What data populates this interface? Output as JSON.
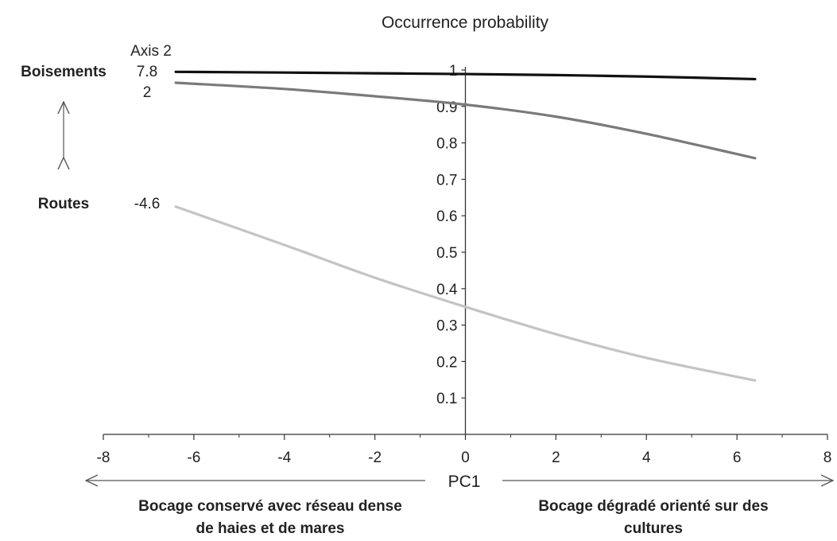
{
  "chart_data": {
    "type": "line",
    "title": "Occurrence probability",
    "xlabel": "PC1",
    "xlim": [
      -8,
      8
    ],
    "ylim": [
      0,
      1
    ],
    "x_ticks": [
      "-8",
      "-6",
      "-4",
      "-2",
      "0",
      "2",
      "4",
      "6",
      "8"
    ],
    "y_ticks": [
      "0.1",
      "0.2",
      "0.3",
      "0.4",
      "0.5",
      "0.6",
      "0.7",
      "0.8",
      "0.9",
      "1"
    ],
    "grid": false,
    "legend": {
      "title": "Axis 2",
      "top_label": "Boisements",
      "bottom_label": "Routes"
    },
    "x_descriptors": {
      "left": [
        "Bocage conservé avec réseau dense",
        "de haies et de mares"
      ],
      "right": [
        "Bocage dégradé orienté sur des",
        "cultures"
      ]
    },
    "series": [
      {
        "name": "7.8",
        "color": "#111111",
        "x": [
          -6.4,
          -4,
          -2,
          0,
          2,
          4,
          6.4
        ],
        "y": [
          0.995,
          0.993,
          0.991,
          0.989,
          0.986,
          0.982,
          0.975
        ]
      },
      {
        "name": "2",
        "color": "#7a7a7a",
        "x": [
          -6.4,
          -4,
          -2,
          0,
          2,
          4,
          6.4
        ],
        "y": [
          0.965,
          0.948,
          0.928,
          0.905,
          0.872,
          0.825,
          0.758
        ]
      },
      {
        "name": "-4.6",
        "color": "#c4c4c4",
        "x": [
          -6.4,
          -4,
          -2,
          0,
          2,
          4,
          6.4
        ],
        "y": [
          0.625,
          0.52,
          0.43,
          0.35,
          0.275,
          0.21,
          0.148
        ]
      }
    ]
  }
}
